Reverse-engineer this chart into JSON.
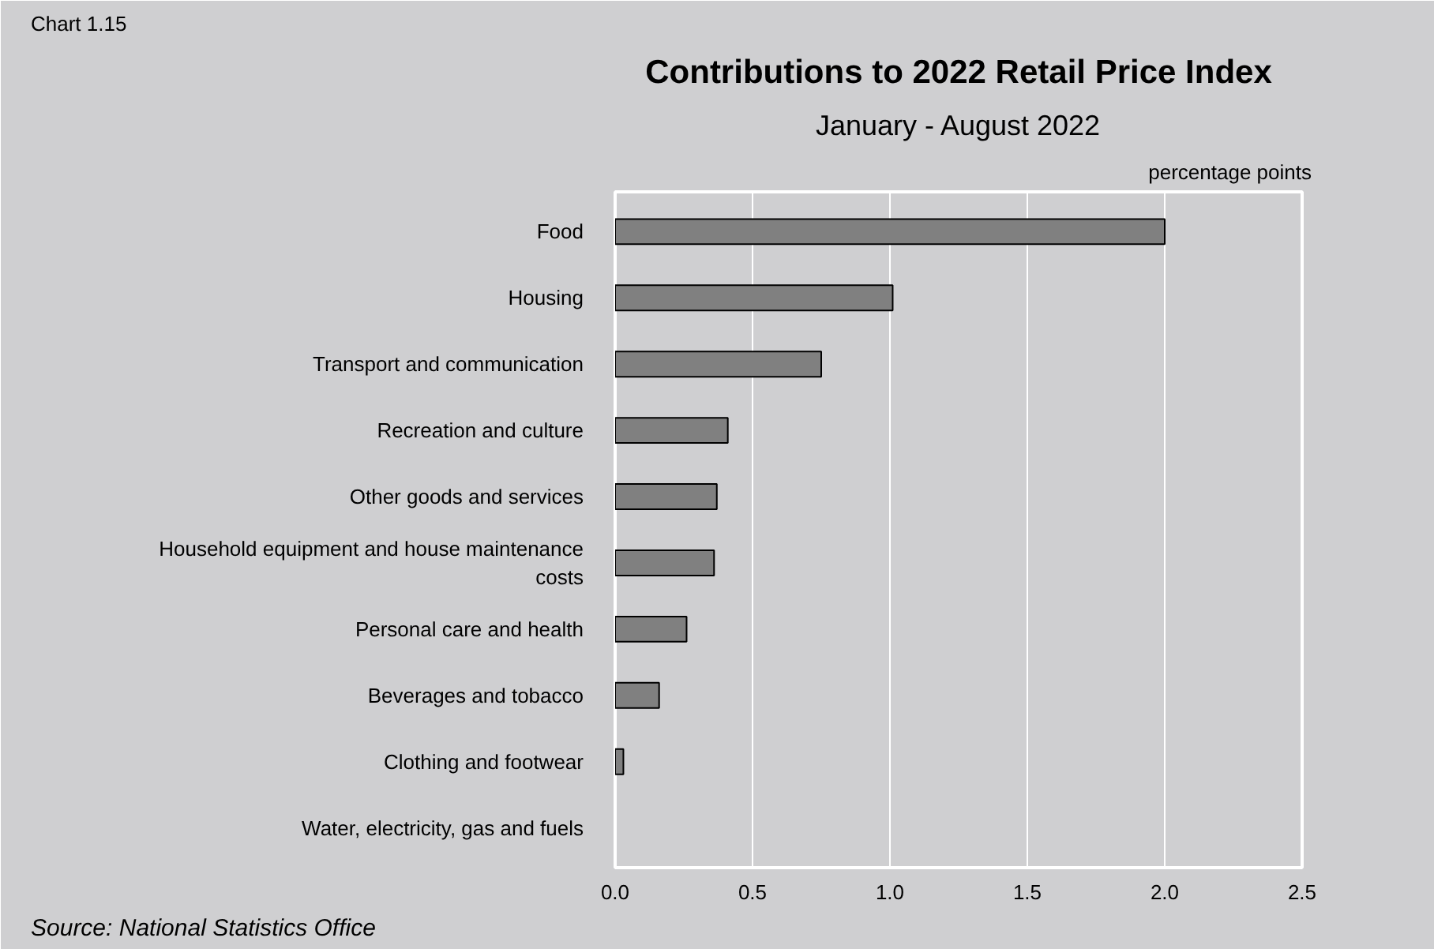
{
  "chart_data": {
    "type": "bar",
    "orientation": "horizontal",
    "title": "Contributions to 2022 Retail Price Index",
    "subtitle": "January - August 2022",
    "xlabel": "percentage points",
    "annotations": [
      "Chart 1.15",
      "Source: National Statistics Office"
    ],
    "categories": [
      "Food",
      "Housing",
      "Transport and communication",
      "Recreation and culture",
      "Other goods and services",
      "Household equipment and house maintenance costs",
      "Personal care and health",
      "Beverages and tobacco",
      "Clothing and footwear",
      "Water, electricity, gas and fuels"
    ],
    "values": [
      2.0,
      1.01,
      0.75,
      0.41,
      0.37,
      0.36,
      0.26,
      0.16,
      0.03,
      0.0
    ],
    "color": "#808080",
    "xlim": [
      0,
      2.5
    ],
    "xticks": [
      {
        "value": 0,
        "label": "0.0"
      },
      {
        "value": 0.5,
        "label": "0.5"
      },
      {
        "value": 1,
        "label": "1.0"
      },
      {
        "value": 1.5,
        "label": "1.5"
      },
      {
        "value": 2,
        "label": "2.0"
      },
      {
        "value": 2.5,
        "label": "2.5"
      }
    ],
    "grid": "x"
  }
}
